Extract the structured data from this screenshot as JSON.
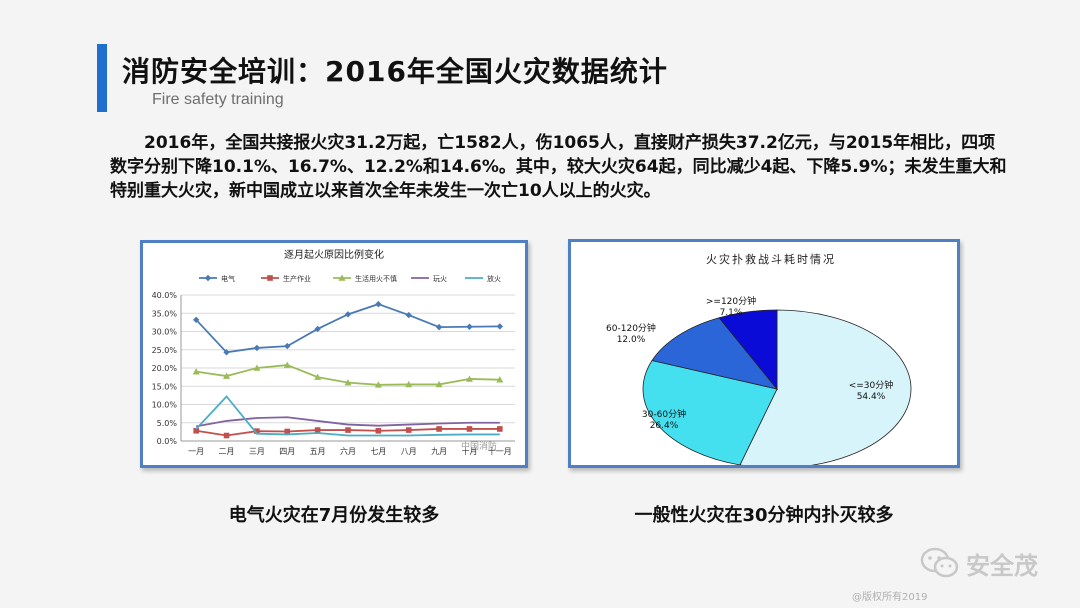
{
  "header": {
    "title": "消防安全培训：2016年全国火灾数据统计",
    "subtitle": "Fire safety training"
  },
  "body_text": "2016年，全国共接报火灾31.2万起，亡1582人，伤1065人，直接财产损失37.2亿元，与2015年相比，四项数字分别下降10.1%、16.7%、12.2%和14.6%。其中，较大火灾64起，同比减少4起、下降5.9%；未发生重大和特别重大火灾，新中国成立以来首次全年未发生一次亡10人以上的火灾。",
  "captions": {
    "left": "电气火灾在7月份发生较多",
    "right": "一般性火灾在30分钟内扑灭较多"
  },
  "watermark": {
    "brand": "安全茂",
    "chart_mark": "中国消防",
    "copyright": "@版权所有2019"
  },
  "chart_data": [
    {
      "type": "line",
      "title": "逐月起火原因比例变化",
      "categories": [
        "一月",
        "二月",
        "三月",
        "四月",
        "五月",
        "六月",
        "七月",
        "八月",
        "九月",
        "十月",
        "十一月"
      ],
      "ylim": [
        0,
        40
      ],
      "yticks": [
        "0.0%",
        "5.0%",
        "10.0%",
        "15.0%",
        "20.0%",
        "25.0%",
        "30.0%",
        "35.0%",
        "40.0%"
      ],
      "grid": true,
      "legend_position": "top",
      "series": [
        {
          "name": "电气",
          "color": "#4a7ab5",
          "marker": "diamond",
          "values": [
            33.2,
            24.3,
            25.5,
            26.0,
            30.7,
            34.7,
            37.5,
            34.5,
            31.2,
            31.3,
            31.4
          ]
        },
        {
          "name": "生产作业",
          "color": "#c0504d",
          "marker": "square",
          "values": [
            2.8,
            1.5,
            2.7,
            2.6,
            3.0,
            3.0,
            2.8,
            3.0,
            3.3,
            3.3,
            3.3
          ]
        },
        {
          "name": "生活用火不慎",
          "color": "#9bbb59",
          "marker": "triangle",
          "values": [
            19.0,
            17.8,
            20.0,
            20.8,
            17.5,
            16.0,
            15.4,
            15.5,
            15.5,
            17.0,
            16.8
          ]
        },
        {
          "name": "玩火",
          "color": "#8064a2",
          "marker": "none",
          "values": [
            4.0,
            5.5,
            6.3,
            6.5,
            5.5,
            4.5,
            4.2,
            4.5,
            4.8,
            5.0,
            5.0
          ]
        },
        {
          "name": "放火",
          "color": "#4bacc6",
          "marker": "none",
          "values": [
            3.3,
            12.2,
            2.0,
            1.8,
            2.2,
            1.5,
            1.5,
            1.5,
            1.7,
            1.8,
            1.8
          ]
        }
      ]
    },
    {
      "type": "pie",
      "title": "火灾扑救战斗耗时情况",
      "slices": [
        {
          "label": "<=30分钟",
          "value_text": "54.4%",
          "value": 54.4,
          "color": "#d8f4fb"
        },
        {
          "label": "30-60分钟",
          "value_text": "26.4%",
          "value": 26.4,
          "color": "#45e0f0"
        },
        {
          "label": "60-120分钟",
          "value_text": "12.0%",
          "value": 12.0,
          "color": "#2a66d8"
        },
        {
          "label": ">=120分钟",
          "value_text": "7.1%",
          "value": 7.1,
          "color": "#0b0bd8"
        }
      ]
    }
  ]
}
